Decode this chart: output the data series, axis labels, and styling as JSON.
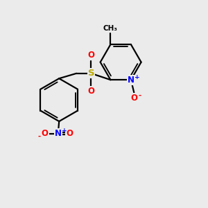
{
  "bg_color": "#ebebeb",
  "bond_color": "#000000",
  "bond_lw": 1.6,
  "atom_colors": {
    "O": "#ff0000",
    "N": "#0000ff",
    "S": "#bbaa00",
    "C": "#000000"
  },
  "font_size_atom": 8.5,
  "font_size_small": 6.5,
  "xlim": [
    0,
    10
  ],
  "ylim": [
    0,
    10
  ]
}
